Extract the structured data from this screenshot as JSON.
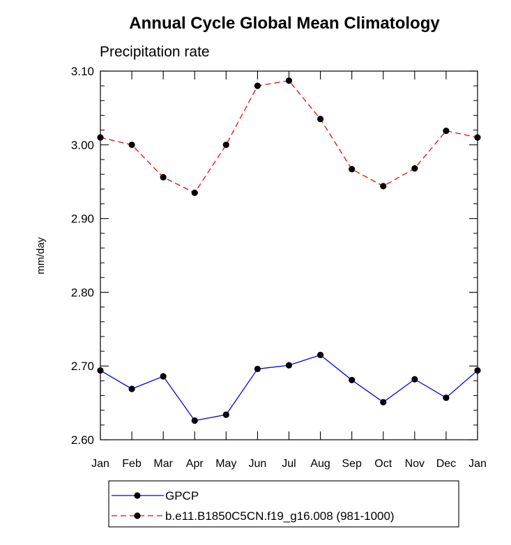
{
  "chart_data": {
    "type": "line",
    "title": "Annual Cycle Global Mean Climatology",
    "subtitle": "Precipitation rate",
    "xlabel": "",
    "ylabel": "mm/day",
    "categories": [
      "Jan",
      "Feb",
      "Mar",
      "Apr",
      "May",
      "Jun",
      "Jul",
      "Aug",
      "Sep",
      "Oct",
      "Nov",
      "Dec",
      "Jan"
    ],
    "ylim": [
      2.6,
      3.1
    ],
    "yticks": [
      "2.60",
      "2.70",
      "2.80",
      "2.90",
      "3.00",
      "3.10"
    ],
    "grid": false,
    "legend_position": "bottom",
    "series": [
      {
        "name": "GPCP",
        "color": "#0000ff",
        "dash": "solid",
        "values": [
          2.694,
          2.669,
          2.686,
          2.626,
          2.634,
          2.696,
          2.701,
          2.715,
          2.681,
          2.651,
          2.682,
          2.657,
          2.694
        ]
      },
      {
        "name": "b.e11.B1850C5CN.f19_g16.008 (981-1000)",
        "color": "#ff0000",
        "dash": "dashed",
        "values": [
          3.01,
          3.0,
          2.956,
          2.935,
          3.0,
          3.08,
          3.087,
          3.035,
          2.967,
          2.944,
          2.968,
          3.019,
          3.01
        ]
      }
    ]
  }
}
